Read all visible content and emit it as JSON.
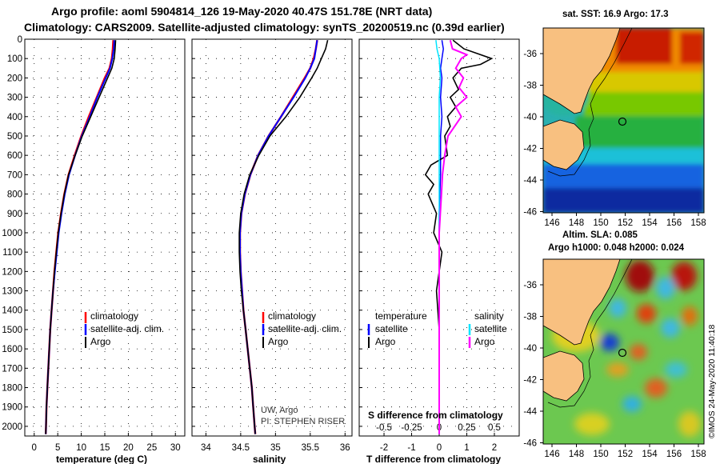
{
  "header": {
    "title_line1": "Argo profile: aoml 5904814_126 19-May-2020 40.47S 151.78E (NRT data)",
    "title_line2": "Climatology: CARS2009. Satellite-adjusted climatology: synTS_20200519.nc (0.39d earlier)"
  },
  "colors": {
    "climatology": "#ff0000",
    "satellite_adj": "#0000ff",
    "argo": "#000000",
    "sat_cyan": "#00e5ff",
    "sal_magenta": "#ff00ff"
  },
  "chart_data": [
    {
      "type": "line",
      "name": "temperature-profile",
      "xlabel": "temperature (deg C)",
      "ylabel": "",
      "xlim": [
        -2,
        32
      ],
      "ylim": [
        2050,
        0
      ],
      "xticks": [
        "0",
        "5",
        "10",
        "15",
        "20",
        "25",
        "30"
      ],
      "xtick_values": [
        0,
        5,
        10,
        15,
        20,
        25,
        30
      ],
      "yticks": [
        "0",
        "100",
        "200",
        "300",
        "400",
        "500",
        "600",
        "700",
        "800",
        "900",
        "1000",
        "1100",
        "1200",
        "1300",
        "1400",
        "1500",
        "1600",
        "1700",
        "1800",
        "1900",
        "2000"
      ],
      "ytick_values": [
        0,
        100,
        200,
        300,
        400,
        500,
        600,
        700,
        800,
        900,
        1000,
        1100,
        1200,
        1300,
        1400,
        1500,
        1600,
        1700,
        1800,
        1900,
        2000
      ],
      "legend": [
        "climatology",
        "satellite-adj. clim.",
        "Argo"
      ],
      "series": [
        {
          "name": "climatology",
          "depth": [
            5,
            50,
            100,
            150,
            200,
            300,
            400,
            500,
            600,
            700,
            800,
            900,
            1000,
            1100,
            1200,
            1300,
            1400,
            1500,
            1600,
            1700,
            1800,
            1900,
            2000,
            2040
          ],
          "values": [
            16.8,
            16.7,
            16.5,
            16.0,
            15.0,
            13.3,
            11.6,
            10.0,
            8.6,
            7.3,
            6.4,
            5.7,
            5.1,
            4.7,
            4.3,
            4.0,
            3.7,
            3.4,
            3.2,
            3.0,
            2.8,
            2.6,
            2.5,
            2.45
          ]
        },
        {
          "name": "satellite-adj. clim.",
          "depth": [
            5,
            50,
            100,
            150,
            200,
            300,
            400,
            500,
            600,
            700,
            800,
            900,
            1000,
            1100,
            1200,
            1300,
            1400,
            1500,
            1600,
            1700,
            1800,
            1900,
            2000,
            2040
          ],
          "values": [
            17.0,
            16.9,
            16.6,
            16.1,
            15.2,
            13.4,
            11.8,
            10.1,
            8.7,
            7.4,
            6.5,
            5.8,
            5.2,
            4.8,
            4.4,
            4.0,
            3.7,
            3.4,
            3.2,
            3.0,
            2.8,
            2.6,
            2.5,
            2.45
          ]
        },
        {
          "name": "Argo",
          "depth": [
            5,
            50,
            100,
            150,
            200,
            300,
            400,
            500,
            600,
            700,
            800,
            900,
            1000,
            1100,
            1200,
            1300,
            1400,
            1500,
            1600,
            1700,
            1800,
            1900,
            2000,
            2040
          ],
          "values": [
            17.3,
            17.2,
            17.0,
            16.5,
            15.6,
            13.8,
            12.0,
            10.2,
            8.7,
            7.3,
            6.4,
            5.7,
            5.1,
            4.7,
            4.3,
            4.0,
            3.7,
            3.4,
            3.2,
            3.0,
            2.8,
            2.6,
            2.5,
            2.45
          ]
        }
      ]
    },
    {
      "type": "line",
      "name": "salinity-profile",
      "xlabel": "salinity",
      "xlim": [
        33.8,
        36.1
      ],
      "ylim": [
        2050,
        0
      ],
      "xticks": [
        "34",
        "34.5",
        "35",
        "35.5",
        "36"
      ],
      "xtick_values": [
        34,
        34.5,
        35,
        35.5,
        36
      ],
      "legend": [
        "climatology",
        "satellite-adj. clim.",
        "Argo"
      ],
      "annotation": [
        "UW, Argo",
        "PI: STEPHEN RISER"
      ],
      "series": [
        {
          "name": "climatology",
          "depth": [
            5,
            50,
            100,
            150,
            200,
            300,
            400,
            500,
            600,
            700,
            800,
            900,
            1000,
            1100,
            1200,
            1300,
            1400,
            1500,
            1600,
            1700,
            1800,
            1900,
            2000,
            2040
          ],
          "values": [
            35.6,
            35.58,
            35.55,
            35.5,
            35.42,
            35.25,
            35.08,
            34.9,
            34.75,
            34.64,
            34.56,
            34.51,
            34.49,
            34.49,
            34.5,
            34.52,
            34.54,
            34.57,
            34.6,
            34.63,
            34.66,
            34.68,
            34.7,
            34.71
          ]
        },
        {
          "name": "satellite-adj. clim.",
          "depth": [
            5,
            50,
            100,
            150,
            200,
            300,
            400,
            500,
            600,
            700,
            800,
            900,
            1000,
            1100,
            1200,
            1300,
            1400,
            1500,
            1600,
            1700,
            1800,
            1900,
            2000,
            2040
          ],
          "values": [
            35.6,
            35.58,
            35.56,
            35.5,
            35.43,
            35.26,
            35.08,
            34.9,
            34.75,
            34.64,
            34.56,
            34.51,
            34.49,
            34.49,
            34.5,
            34.52,
            34.54,
            34.57,
            34.6,
            34.63,
            34.66,
            34.68,
            34.7,
            34.71
          ]
        },
        {
          "name": "Argo",
          "depth": [
            5,
            50,
            100,
            150,
            200,
            300,
            400,
            500,
            600,
            700,
            800,
            900,
            1000,
            1100,
            1200,
            1300,
            1400,
            1500,
            1600,
            1700,
            1800,
            1900,
            2000,
            2040
          ],
          "values": [
            35.75,
            35.72,
            35.66,
            35.6,
            35.52,
            35.35,
            35.15,
            34.92,
            34.76,
            34.63,
            34.55,
            34.5,
            34.48,
            34.48,
            34.49,
            34.51,
            34.54,
            34.57,
            34.6,
            34.63,
            34.66,
            34.68,
            34.7,
            34.71
          ]
        }
      ]
    },
    {
      "type": "line",
      "name": "difference-profile",
      "xlabel": "T difference from climatology",
      "xlabel_top": "S difference from climatology",
      "xlim": [
        -2.9,
        2.9
      ],
      "ylim": [
        2050,
        0
      ],
      "xticks": [
        "-2",
        "-1",
        "0",
        "1",
        "2"
      ],
      "xtick_values": [
        -2,
        -1,
        0,
        1,
        2
      ],
      "sticks": [
        "-0.5",
        "-0.25",
        "0",
        "0.25",
        "0.5"
      ],
      "stick_values": [
        -0.5,
        -0.25,
        0,
        0.25,
        0.5
      ],
      "legend_temperature": [
        "temperature",
        "satellite",
        "Argo"
      ],
      "legend_salinity": [
        "salinity",
        "satellite",
        "Argo"
      ],
      "series": [
        {
          "name": "T satellite",
          "depth": [
            5,
            50,
            100,
            150,
            200,
            300,
            400,
            500,
            700,
            900,
            1100,
            1300,
            1500,
            1700,
            1900,
            2040
          ],
          "values": [
            0.1,
            0.15,
            0.1,
            0.05,
            0.1,
            0.05,
            0.1,
            0.05,
            0.05,
            0.0,
            0.0,
            0.0,
            0.0,
            0.0,
            0.0,
            0.0
          ]
        },
        {
          "name": "T Argo",
          "depth": [
            5,
            50,
            100,
            130,
            150,
            200,
            260,
            300,
            350,
            400,
            450,
            500,
            600,
            650,
            700,
            750,
            800,
            900,
            1000,
            1100,
            1200,
            1300,
            1400,
            1500,
            1600,
            1700,
            1800,
            1900,
            2000,
            2040
          ],
          "values": [
            0.5,
            0.9,
            1.9,
            1.5,
            0.8,
            0.5,
            0.7,
            0.4,
            0.6,
            0.3,
            0.4,
            0.2,
            0.3,
            -0.3,
            -0.5,
            -0.2,
            -0.4,
            -0.1,
            -0.2,
            0.1,
            0.0,
            -0.1,
            -0.05,
            0.0,
            0.0,
            0.0,
            0.0,
            0.0,
            0.0,
            0.0
          ]
        },
        {
          "name": "S satellite",
          "depth": [
            5,
            50,
            100,
            200,
            300,
            400,
            500,
            700,
            900,
            1100,
            1300,
            1500,
            1700,
            1900,
            2040
          ],
          "values": [
            -0.03,
            -0.02,
            0.0,
            0.01,
            0.0,
            0.0,
            0.0,
            0.0,
            0.0,
            0.0,
            0.0,
            0.0,
            0.0,
            0.0,
            0.0
          ]
        },
        {
          "name": "S Argo",
          "depth": [
            5,
            50,
            80,
            100,
            150,
            200,
            250,
            300,
            350,
            400,
            500,
            600,
            700,
            800,
            900,
            1000,
            1100,
            1200,
            1300,
            1400,
            1500,
            1700,
            1900,
            2040
          ],
          "values": [
            0.1,
            0.12,
            0.25,
            0.2,
            0.15,
            0.22,
            0.18,
            0.25,
            0.15,
            0.2,
            0.08,
            0.05,
            0.03,
            0.02,
            0.01,
            0.0,
            0.0,
            0.0,
            0.0,
            0.0,
            0.0,
            0.0,
            0.0,
            0.0
          ]
        }
      ]
    }
  ],
  "maps": {
    "sst_title": "sat. SST: 16.9 Argo: 17.3",
    "sla_title_line1": "Altim. SLA: 0.085",
    "sla_title_line2": "Argo h1000: 0.048 h2000: 0.024",
    "lat_labels": [
      "-36",
      "-38",
      "-40",
      "-42",
      "-44",
      "-46"
    ],
    "lon_labels": [
      "146",
      "148",
      "150",
      "152",
      "154",
      "156",
      "158"
    ],
    "credit": "©IMOS 24-May-2020 11:40:18"
  }
}
